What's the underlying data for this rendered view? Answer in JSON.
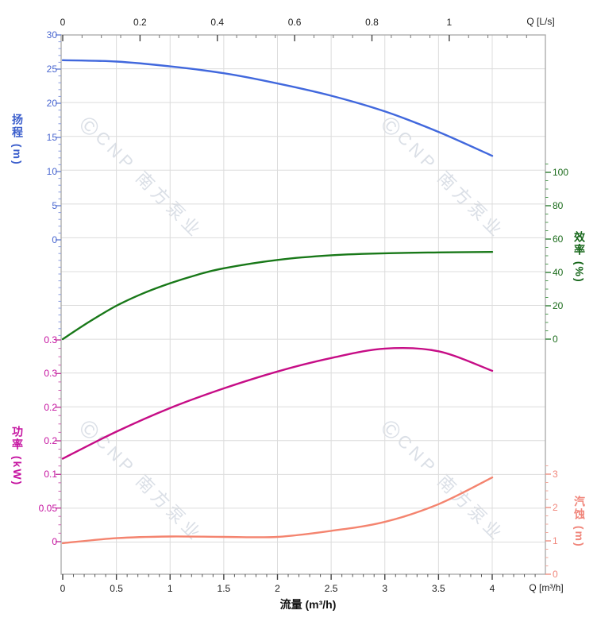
{
  "watermark": {
    "logo_char": "©",
    "text": "CNP 南方泵业"
  },
  "axes": {
    "top_flow": {
      "unit_label": "Q [L/s]",
      "tick_labels": [
        "0",
        "0.2",
        "0.4",
        "0.6",
        "0.8",
        "1"
      ]
    },
    "bottom_flow": {
      "unit_label": "Q [m³/h]",
      "axis_title": "流量 (m³/h)",
      "tick_labels": [
        "0",
        "0.5",
        "1",
        "1.5",
        "2",
        "2.5",
        "3",
        "3.5",
        "4"
      ]
    },
    "head": {
      "axis_title": "扬程 (m)",
      "tick_labels": [
        "30",
        "25",
        "20",
        "15",
        "10",
        "5",
        "0"
      ],
      "color": "#4a67d0"
    },
    "power": {
      "axis_title": "功率 (kW)",
      "tick_labels": [
        "0.3",
        "0.3",
        "0.2",
        "0.2",
        "0.1",
        "0.05",
        "0"
      ],
      "color": "#c513a0"
    },
    "efficiency": {
      "axis_title": "效率 (%)",
      "tick_labels": [
        "100",
        "80",
        "60",
        "40",
        "20",
        "0"
      ],
      "color": "#1b6b1b"
    },
    "npsh": {
      "axis_title": "汽蚀 (m)",
      "tick_labels": [
        "3",
        "2",
        "1",
        "0"
      ],
      "color": "#f0857a"
    }
  },
  "chart_data": {
    "type": "line",
    "xlabel": "流量 (m³/h)",
    "x2label": "Q [L/s]",
    "x_range_m3h": [
      0,
      4
    ],
    "x_range_ls": [
      0,
      1.1
    ],
    "grid": true,
    "legend": "none",
    "series": [
      {
        "name": "扬程",
        "unit": "m",
        "axis": "head",
        "color": "#4168dd",
        "axis_range": [
          0,
          30
        ],
        "x": [
          0,
          0.5,
          1,
          1.5,
          2,
          2.5,
          3,
          3.5,
          4
        ],
        "y": [
          26.3,
          26.1,
          25.4,
          24.4,
          22.9,
          21.1,
          18.8,
          15.8,
          12.3
        ]
      },
      {
        "name": "效率",
        "unit": "%",
        "axis": "efficiency",
        "color": "#187818",
        "axis_range": [
          0,
          100
        ],
        "x": [
          0,
          0.25,
          0.5,
          0.75,
          1,
          1.25,
          1.5,
          2,
          2.5,
          3,
          3.5,
          4
        ],
        "y": [
          0,
          10.5,
          20,
          27.5,
          33.5,
          38.5,
          42.5,
          47.5,
          50.3,
          51.5,
          52,
          52.3
        ]
      },
      {
        "name": "功率",
        "unit": "kW",
        "axis": "power",
        "color": "#c60d86",
        "axis_range": [
          0,
          0.3
        ],
        "x": [
          0,
          0.5,
          1,
          1.5,
          2,
          2.5,
          3,
          3.5,
          4
        ],
        "y": [
          0.123,
          0.163,
          0.198,
          0.227,
          0.252,
          0.272,
          0.286,
          0.282,
          0.253
        ]
      },
      {
        "name": "汽蚀",
        "unit": "m",
        "axis": "npsh",
        "color": "#f4846f",
        "axis_range": [
          0,
          3
        ],
        "x": [
          0,
          0.5,
          1,
          1.5,
          2,
          2.5,
          3,
          3.5,
          4
        ],
        "y": [
          0.93,
          1.08,
          1.13,
          1.12,
          1.12,
          1.3,
          1.57,
          2.1,
          2.9
        ]
      }
    ]
  }
}
